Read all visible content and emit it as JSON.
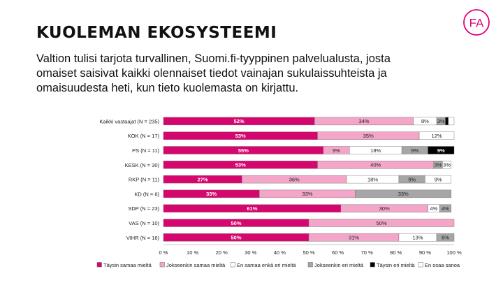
{
  "header": {
    "title": "KUOLEMAN EKOSYSTEEMI",
    "subtitle": "Valtion tulisi tarjota turvallinen, Suomi.fi-tyyppinen palvelualusta, josta omaiset saisivat kaikki olennaiset tiedot vainajan sukulaissuhteista ja omaisuudesta heti, kun tieto kuolemasta on kirjattu.",
    "logo_text": "FA"
  },
  "colors": {
    "accent": "#e0007a",
    "series": [
      "#d6066f",
      "#f4a6c8",
      "#ffffff",
      "#a6a6a6",
      "#000000",
      "#ffffff"
    ]
  },
  "chart_data": {
    "type": "bar",
    "orientation": "horizontal",
    "stacked": true,
    "percent": true,
    "categories": [
      "Kaikki vastaajat (N = 235)",
      "KOK (N = 17)",
      "PS (N = 11)",
      "KESK (N = 30)",
      "RKP (N = 11)",
      "KD (N = 6)",
      "SDP (N = 23)",
      "VAS (N = 10)",
      "VIHR (N = 16)"
    ],
    "series": [
      {
        "name": "Täysin samaa mieltä",
        "values": [
          52,
          53,
          55,
          53,
          27,
          33,
          61,
          50,
          50
        ],
        "labels": [
          "52%",
          "53%",
          "55%",
          "53%",
          "27%",
          "33%",
          "61%",
          "50%",
          "50%"
        ]
      },
      {
        "name": "Jokseenkin samaa mieltä",
        "values": [
          34,
          35,
          9,
          40,
          36,
          33,
          30,
          50,
          31
        ],
        "labels": [
          "34%",
          "35%",
          "9%",
          "40%",
          "36%",
          "33%",
          "30%",
          "50%",
          "31%"
        ]
      },
      {
        "name": "En samaa enkä eri mieltä",
        "values": [
          8,
          12,
          18,
          0,
          18,
          0,
          4,
          0,
          13
        ],
        "labels": [
          "8%",
          "12%",
          "18%",
          "",
          "18%",
          "",
          "4%",
          "",
          "13%"
        ]
      },
      {
        "name": "Jokseenkin eri mieltä",
        "values": [
          3,
          0,
          9,
          3,
          9,
          33,
          4,
          0,
          6
        ],
        "labels": [
          "3%",
          "",
          "9%",
          "3%",
          "9%",
          "33%",
          "4%",
          "",
          "6%"
        ]
      },
      {
        "name": "Täysin eri mieltä",
        "values": [
          1,
          0,
          9,
          0,
          0,
          0,
          0,
          0,
          0
        ],
        "labels": [
          "",
          "",
          "9%",
          "",
          "",
          "",
          "",
          "",
          ""
        ]
      },
      {
        "name": "En osaa sanoa",
        "values": [
          2,
          0,
          0,
          3,
          9,
          0,
          0,
          0,
          0
        ],
        "labels": [
          "",
          "",
          "",
          "3%",
          "9%",
          "",
          "",
          "",
          ""
        ]
      }
    ],
    "xlim": [
      0,
      100
    ],
    "xticks": [
      "0 %",
      "10 %",
      "20 %",
      "30 %",
      "40 %",
      "50 %",
      "60 %",
      "70 %",
      "80 %",
      "90 %",
      "100 %"
    ],
    "legend_position": "bottom",
    "grid": false
  }
}
